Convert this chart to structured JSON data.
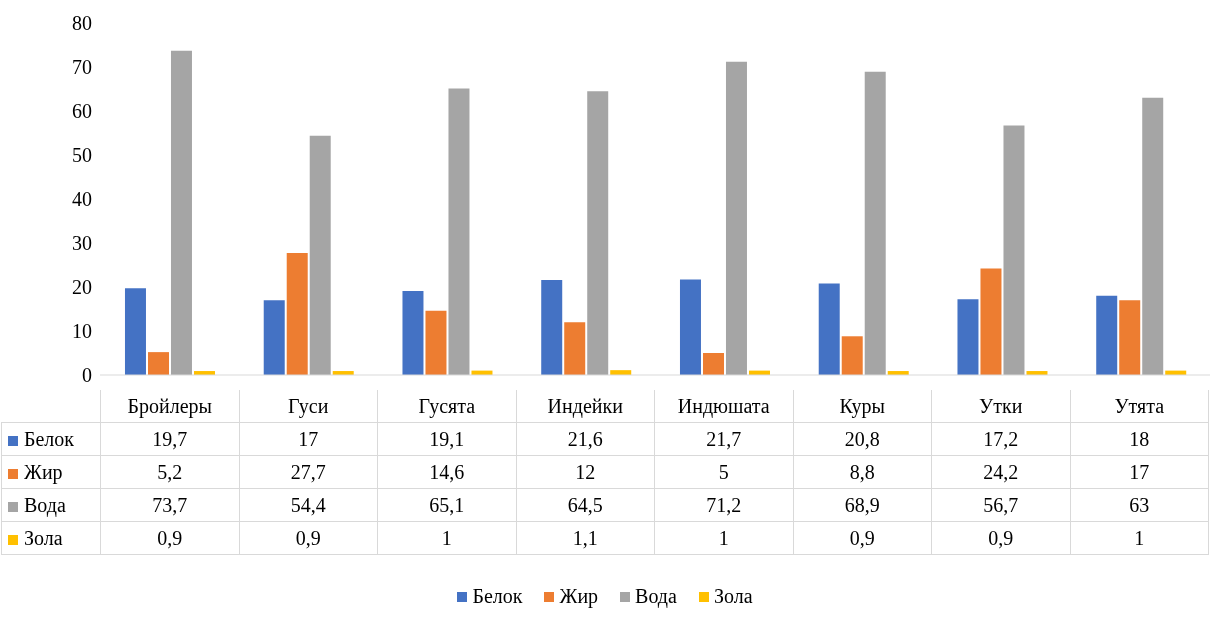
{
  "chart_data": {
    "type": "bar",
    "categories": [
      "Бройлеры",
      "Гуси",
      "Гусята",
      "Индейки",
      "Индюшата",
      "Куры",
      "Утки",
      "Утята"
    ],
    "series": [
      {
        "name": "Белок",
        "color": "#4472c4",
        "values": [
          19.7,
          17,
          19.1,
          21.6,
          21.7,
          20.8,
          17.2,
          18
        ],
        "value_labels": [
          "19,7",
          "17",
          "19,1",
          "21,6",
          "21,7",
          "20,8",
          "17,2",
          "18"
        ]
      },
      {
        "name": "Жир",
        "color": "#ed7d31",
        "values": [
          5.2,
          27.7,
          14.6,
          12,
          5,
          8.8,
          24.2,
          17
        ],
        "value_labels": [
          "5,2",
          "27,7",
          "14,6",
          "12",
          "5",
          "8,8",
          "24,2",
          "17"
        ]
      },
      {
        "name": "Вода",
        "color": "#a5a5a5",
        "values": [
          73.7,
          54.4,
          65.1,
          64.5,
          71.2,
          68.9,
          56.7,
          63
        ],
        "value_labels": [
          "73,7",
          "54,4",
          "65,1",
          "64,5",
          "71,2",
          "68,9",
          "56,7",
          "63"
        ]
      },
      {
        "name": "Зола",
        "color": "#ffc000",
        "values": [
          0.9,
          0.9,
          1,
          1.1,
          1,
          0.9,
          0.9,
          1
        ],
        "value_labels": [
          "0,9",
          "0,9",
          "1",
          "1,1",
          "1",
          "0,9",
          "0,9",
          "1"
        ]
      }
    ],
    "ylim": [
      0,
      80
    ],
    "yticks": [
      0,
      10,
      20,
      30,
      40,
      50,
      60,
      70,
      80
    ],
    "grid": false,
    "legend": "bottom"
  }
}
